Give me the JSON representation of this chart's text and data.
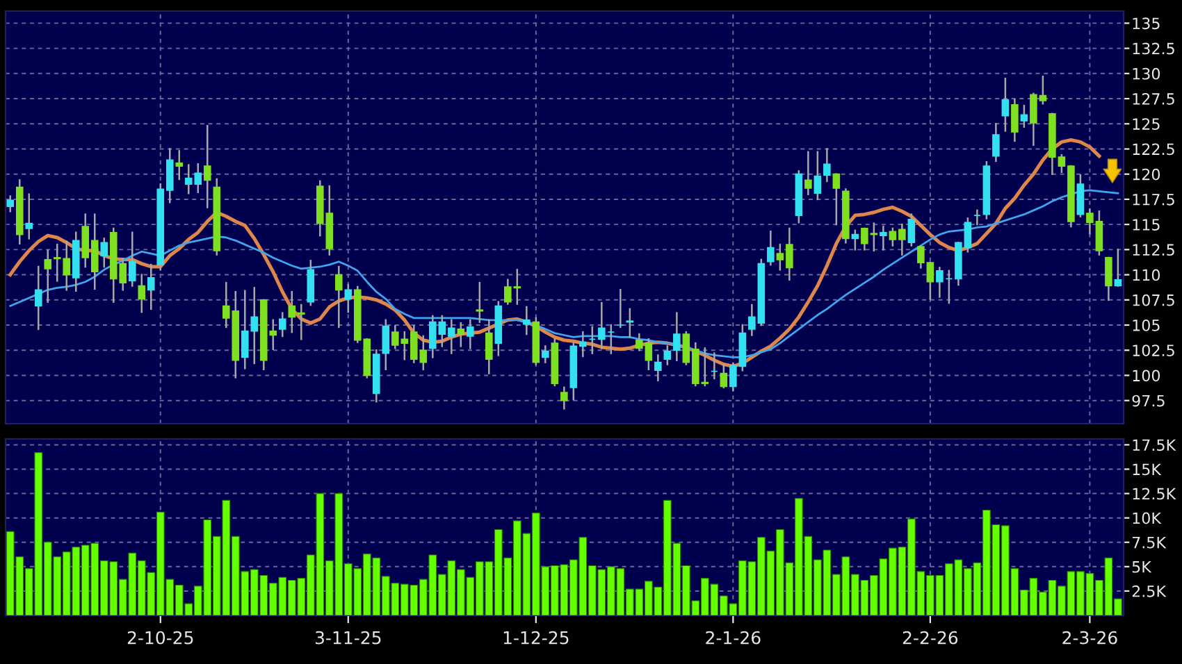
{
  "chart_data": [
    {
      "type": "candlestick",
      "categories": [
        null,
        null,
        null,
        null,
        null,
        null,
        null,
        null,
        null,
        null,
        null,
        null,
        null,
        null,
        null,
        null,
        null,
        null,
        null,
        null,
        null,
        null,
        null,
        null,
        null,
        null,
        null,
        null,
        null,
        null,
        null,
        null,
        null,
        null,
        null,
        null,
        null,
        null,
        null,
        null,
        null,
        null,
        null,
        null,
        null,
        null,
        null,
        null,
        null,
        null,
        null,
        null,
        null,
        null,
        null,
        null,
        null,
        null,
        null,
        null,
        null,
        null,
        null,
        null,
        null,
        null,
        null,
        null,
        null,
        null,
        null,
        null,
        null,
        null,
        null,
        null,
        null,
        null,
        null,
        null,
        null,
        null,
        null,
        null,
        null,
        null,
        null,
        null,
        null,
        null,
        null,
        null,
        null,
        null,
        null,
        null,
        null,
        null,
        null,
        null,
        null,
        null,
        null,
        null,
        null,
        null,
        null,
        null,
        null,
        null,
        null,
        null,
        null,
        null,
        null,
        null,
        null,
        null,
        null
      ],
      "ohlc": [
        [
          116.8,
          117.8,
          116.3,
          117.4
        ],
        [
          118.7,
          119.4,
          113.1,
          114.0
        ],
        [
          114.6,
          118.0,
          113.6,
          115.1
        ],
        [
          106.9,
          110.8,
          104.6,
          108.5
        ],
        [
          111.5,
          112.4,
          107.3,
          110.6
        ],
        [
          111.7,
          113.0,
          109.4,
          111.6
        ],
        [
          111.6,
          113.3,
          108.5,
          110.0
        ],
        [
          109.7,
          114.2,
          108.4,
          113.4
        ],
        [
          114.8,
          116.0,
          110.8,
          111.7
        ],
        [
          113.4,
          116.0,
          108.6,
          110.3
        ],
        [
          111.9,
          113.6,
          110.8,
          113.2
        ],
        [
          114.2,
          114.6,
          107.3,
          109.6
        ],
        [
          111.1,
          111.6,
          108.5,
          109.2
        ],
        [
          109.4,
          114.2,
          108.9,
          111.3
        ],
        [
          108.9,
          110.0,
          106.3,
          107.6
        ],
        [
          108.5,
          111.0,
          106.6,
          109.7
        ],
        [
          111.0,
          119.0,
          110.5,
          118.5
        ],
        [
          118.4,
          122.5,
          117.2,
          121.4
        ],
        [
          121.1,
          122.3,
          119.5,
          120.8
        ],
        [
          119.0,
          120.9,
          118.1,
          119.6
        ],
        [
          119.0,
          121.0,
          118.2,
          120.1
        ],
        [
          120.8,
          124.8,
          116.7,
          119.4
        ],
        [
          118.7,
          119.5,
          112.0,
          112.4
        ],
        [
          106.9,
          109.2,
          104.8,
          105.7
        ],
        [
          106.4,
          108.3,
          99.8,
          101.5
        ],
        [
          101.8,
          108.4,
          100.7,
          104.4
        ],
        [
          104.4,
          108.7,
          101.2,
          105.8
        ],
        [
          107.5,
          107.5,
          100.6,
          101.5
        ],
        [
          104.4,
          105.5,
          102.6,
          104.0
        ],
        [
          104.6,
          106.2,
          103.9,
          105.6
        ],
        [
          106.9,
          108.3,
          104.3,
          105.8
        ],
        [
          106.2,
          107.0,
          103.6,
          106.1
        ],
        [
          107.3,
          111.4,
          107.0,
          110.5
        ],
        [
          118.8,
          119.3,
          113.9,
          115.1
        ],
        [
          116.1,
          118.8,
          112.0,
          112.6
        ],
        [
          110.0,
          110.8,
          104.8,
          108.5
        ],
        [
          107.6,
          109.0,
          106.3,
          108.5
        ],
        [
          108.5,
          108.8,
          103.3,
          103.5
        ],
        [
          103.6,
          103.6,
          99.8,
          100.0
        ],
        [
          98.2,
          102.5,
          97.4,
          102.1
        ],
        [
          102.2,
          105.5,
          100.6,
          104.9
        ],
        [
          104.3,
          104.9,
          102.7,
          103.0
        ],
        [
          103.6,
          104.3,
          101.6,
          103.2
        ],
        [
          104.3,
          104.9,
          101.3,
          101.6
        ],
        [
          102.5,
          103.9,
          100.6,
          101.3
        ],
        [
          102.7,
          105.9,
          101.8,
          105.3
        ],
        [
          104.1,
          105.9,
          102.9,
          105.3
        ],
        [
          103.9,
          105.5,
          102.2,
          104.7
        ],
        [
          104.6,
          105.2,
          102.9,
          104.1
        ],
        [
          103.9,
          105.5,
          102.7,
          104.8
        ],
        [
          106.5,
          109.2,
          105.3,
          106.4
        ],
        [
          104.2,
          105.5,
          100.2,
          101.6
        ],
        [
          103.2,
          107.3,
          102.0,
          106.9
        ],
        [
          108.8,
          109.5,
          107.1,
          107.3
        ],
        [
          108.8,
          110.5,
          107.1,
          108.7
        ],
        [
          105.1,
          106.8,
          104.1,
          105.5
        ],
        [
          105.3,
          105.7,
          101.1,
          101.3
        ],
        [
          101.8,
          102.9,
          101.3,
          102.4
        ],
        [
          103.2,
          103.6,
          99.0,
          99.2
        ],
        [
          98.3,
          98.8,
          96.7,
          97.5
        ],
        [
          98.8,
          103.2,
          97.6,
          102.9
        ],
        [
          102.9,
          104.3,
          101.9,
          103.3
        ],
        [
          103.6,
          104.8,
          102.2,
          103.6
        ],
        [
          103.6,
          107.2,
          102.7,
          104.7
        ],
        [
          104.3,
          105.0,
          102.2,
          104.3
        ],
        [
          105.0,
          108.5,
          104.8,
          105.0
        ],
        [
          105.3,
          106.6,
          103.8,
          105.4
        ],
        [
          103.5,
          104.1,
          102.5,
          102.7
        ],
        [
          103.2,
          103.6,
          100.6,
          101.5
        ],
        [
          100.5,
          102.0,
          99.5,
          101.3
        ],
        [
          101.6,
          102.9,
          101.1,
          102.4
        ],
        [
          102.5,
          106.2,
          101.5,
          104.1
        ],
        [
          104.1,
          104.3,
          101.1,
          101.3
        ],
        [
          102.6,
          103.2,
          99.0,
          99.2
        ],
        [
          99.3,
          102.7,
          99.0,
          99.2
        ],
        [
          100.4,
          102.2,
          99.7,
          100.4
        ],
        [
          100.2,
          101.1,
          98.8,
          98.9
        ],
        [
          98.9,
          101.2,
          98.5,
          101.0
        ],
        [
          100.9,
          105.0,
          100.5,
          104.2
        ],
        [
          104.6,
          107.0,
          104.0,
          105.8
        ],
        [
          105.2,
          111.5,
          105.0,
          111.1
        ],
        [
          111.3,
          114.3,
          111.0,
          112.7
        ],
        [
          112.1,
          113.0,
          110.5,
          111.5
        ],
        [
          113.0,
          114.6,
          109.5,
          110.7
        ],
        [
          115.9,
          120.3,
          115.2,
          120.0
        ],
        [
          119.4,
          122.2,
          118.0,
          118.6
        ],
        [
          118.1,
          122.2,
          117.5,
          119.8
        ],
        [
          119.9,
          122.5,
          119.3,
          121.0
        ],
        [
          120.0,
          120.0,
          115.0,
          118.6
        ],
        [
          118.3,
          118.5,
          113.2,
          113.6
        ],
        [
          113.6,
          114.4,
          112.5,
          114.0
        ],
        [
          114.6,
          114.6,
          112.5,
          113.1
        ],
        [
          114.1,
          115.1,
          112.4,
          114.0
        ],
        [
          113.9,
          114.8,
          112.5,
          114.2
        ],
        [
          114.3,
          114.6,
          112.9,
          113.5
        ],
        [
          114.5,
          115.0,
          112.0,
          113.5
        ],
        [
          113.2,
          116.0,
          112.9,
          115.5
        ],
        [
          112.8,
          112.8,
          110.7,
          111.2
        ],
        [
          111.2,
          111.2,
          107.6,
          109.3
        ],
        [
          109.3,
          110.7,
          107.8,
          110.4
        ],
        [
          109.6,
          110.4,
          107.2,
          109.6
        ],
        [
          109.6,
          113.2,
          109.0,
          113.2
        ],
        [
          112.7,
          115.6,
          112.3,
          115.2
        ],
        [
          115.9,
          116.4,
          115.0,
          115.9
        ],
        [
          116.0,
          121.2,
          115.6,
          120.8
        ],
        [
          121.8,
          125.0,
          121.3,
          123.9
        ],
        [
          125.8,
          129.5,
          124.3,
          127.4
        ],
        [
          126.9,
          127.4,
          123.3,
          124.2
        ],
        [
          125.3,
          126.8,
          124.7,
          125.9
        ],
        [
          127.9,
          128.0,
          122.9,
          125.1
        ],
        [
          127.8,
          129.7,
          127.0,
          127.3
        ],
        [
          126.0,
          126.0,
          120.0,
          121.7
        ],
        [
          121.7,
          121.9,
          120.2,
          120.8
        ],
        [
          120.8,
          120.8,
          114.8,
          115.3
        ],
        [
          116.0,
          119.9,
          115.8,
          119.0
        ],
        [
          116.1,
          116.5,
          114.1,
          115.2
        ],
        [
          115.3,
          116.3,
          112.0,
          112.4
        ],
        [
          111.7,
          111.7,
          107.5,
          108.9
        ],
        [
          108.9,
          112.5,
          108.9,
          109.5
        ]
      ],
      "colors": [
        "#33e0f0",
        "#7ee020",
        "#33e0f0",
        "#33e0f0",
        "#7ee020",
        "#7ee020",
        "#7ee020",
        "#33e0f0",
        "#7ee020",
        "#7ee020",
        "#33e0f0",
        "#7ee020",
        "#7ee020",
        "#33e0f0",
        "#7ee020",
        "#33e0f0",
        "#33e0f0",
        "#33e0f0",
        "#7ee020",
        "#33e0f0",
        "#33e0f0",
        "#7ee020",
        "#7ee020",
        "#7ee020",
        "#7ee020",
        "#33e0f0",
        "#33e0f0",
        "#7ee020",
        "#7ee020",
        "#33e0f0",
        "#7ee020",
        "#7ee020",
        "#33e0f0",
        "#7ee020",
        "#7ee020",
        "#7ee020",
        "#33e0f0",
        "#7ee020",
        "#7ee020",
        "#33e0f0",
        "#33e0f0",
        "#7ee020",
        "#7ee020",
        "#7ee020",
        "#7ee020",
        "#33e0f0",
        "#33e0f0",
        "#33e0f0",
        "#7ee020",
        "#33e0f0",
        "#7ee020",
        "#7ee020",
        "#33e0f0",
        "#7ee020",
        "#7ee020",
        "#33e0f0",
        "#7ee020",
        "#33e0f0",
        "#7ee020",
        "#7ee020",
        "#33e0f0",
        "#33e0f0",
        "#33e0f0",
        "#33e0f0",
        "#33e0f0",
        "#33e0f0",
        "#33e0f0",
        "#7ee020",
        "#7ee020",
        "#33e0f0",
        "#33e0f0",
        "#33e0f0",
        "#7ee020",
        "#7ee020",
        "#7ee020",
        "#33e0f0",
        "#7ee020",
        "#33e0f0",
        "#33e0f0",
        "#33e0f0",
        "#33e0f0",
        "#33e0f0",
        "#7ee020",
        "#7ee020",
        "#33e0f0",
        "#7ee020",
        "#33e0f0",
        "#33e0f0",
        "#7ee020",
        "#7ee020",
        "#33e0f0",
        "#7ee020",
        "#7ee020",
        "#33e0f0",
        "#7ee020",
        "#7ee020",
        "#33e0f0",
        "#7ee020",
        "#7ee020",
        "#33e0f0",
        "#33e0f0",
        "#33e0f0",
        "#33e0f0",
        "#33e0f0",
        "#33e0f0",
        "#33e0f0",
        "#33e0f0",
        "#7ee020",
        "#33e0f0",
        "#7ee020",
        "#7ee020",
        "#7ee020",
        "#7ee020",
        "#7ee020",
        "#33e0f0",
        "#7ee020",
        "#7ee020",
        "#7ee020",
        "#33e0f0"
      ],
      "series": [
        {
          "type": "line",
          "color": "#e0864a",
          "values": [
            110.0,
            111.3,
            112.4,
            113.3,
            113.9,
            113.7,
            113.2,
            112.6,
            112.4,
            112.4,
            111.9,
            111.6,
            111.5,
            111.5,
            111.1,
            110.8,
            110.8,
            111.9,
            112.6,
            113.5,
            114.2,
            115.3,
            116.2,
            115.8,
            115.3,
            114.9,
            113.6,
            112.0,
            110.3,
            108.3,
            106.6,
            105.6,
            105.2,
            105.6,
            106.8,
            107.4,
            107.7,
            107.8,
            107.7,
            107.5,
            107.1,
            106.5,
            105.5,
            104.2,
            103.5,
            103.3,
            103.4,
            103.8,
            104.1,
            104.2,
            104.3,
            104.7,
            105.1,
            105.5,
            105.6,
            105.3,
            104.9,
            104.3,
            103.8,
            103.5,
            103.4,
            103.2,
            103.1,
            102.8,
            102.7,
            102.6,
            102.7,
            103.0,
            103.2,
            103.3,
            103.2,
            103.0,
            102.8,
            102.4,
            102.0,
            101.5,
            101.1,
            100.9,
            101.2,
            101.8,
            102.4,
            102.9,
            103.7,
            104.6,
            105.8,
            107.3,
            108.9,
            110.9,
            113.1,
            114.8,
            115.9,
            116.0,
            116.2,
            116.5,
            116.7,
            116.3,
            115.8,
            114.9,
            114.0,
            113.2,
            112.7,
            112.4,
            112.7,
            113.1,
            114.1,
            115.1,
            116.6,
            117.6,
            118.9,
            120.0,
            121.4,
            122.5,
            123.2,
            123.4,
            123.2,
            122.7,
            121.8,
            null,
            null
          ]
        },
        {
          "type": "line",
          "color": "#3fa6ee",
          "values": [
            106.9,
            107.3,
            107.7,
            108.1,
            108.5,
            108.7,
            108.8,
            109.0,
            109.3,
            109.8,
            110.5,
            111.0,
            111.4,
            111.9,
            112.3,
            112.1,
            111.9,
            112.4,
            112.9,
            113.2,
            113.4,
            113.6,
            113.8,
            113.7,
            113.4,
            113.0,
            112.6,
            112.2,
            111.7,
            111.3,
            110.9,
            110.6,
            110.7,
            110.8,
            111.0,
            111.3,
            110.9,
            110.4,
            109.3,
            108.3,
            107.6,
            106.6,
            106.1,
            105.7,
            105.7,
            105.7,
            105.7,
            105.7,
            105.7,
            105.7,
            105.6,
            105.5,
            105.5,
            105.5,
            105.5,
            105.3,
            105.0,
            104.6,
            104.2,
            104.0,
            103.8,
            103.9,
            103.9,
            103.9,
            103.9,
            103.8,
            103.8,
            103.6,
            103.5,
            103.3,
            103.2,
            103.0,
            102.8,
            102.5,
            102.2,
            102.0,
            101.9,
            101.8,
            101.8,
            102.0,
            102.3,
            102.6,
            103.2,
            103.9,
            104.6,
            105.3,
            106.0,
            106.6,
            107.3,
            108.0,
            108.6,
            109.2,
            109.8,
            110.5,
            111.1,
            111.7,
            112.3,
            112.9,
            113.5,
            114.0,
            114.3,
            114.4,
            114.5,
            114.7,
            114.8,
            115.1,
            115.4,
            115.7,
            116.0,
            116.4,
            116.8,
            117.3,
            117.7,
            118.0,
            118.3,
            118.4,
            118.3,
            118.2,
            118.1
          ]
        }
      ],
      "ylim": [
        95.2,
        136.2
      ],
      "yticks": [
        97.5,
        100,
        102.5,
        105,
        107.5,
        110,
        112.5,
        115,
        117.5,
        120,
        122.5,
        125,
        127.5,
        130,
        132.5,
        135
      ],
      "grid": true,
      "tick_labels": "y"
    },
    {
      "type": "bar",
      "categories": [
        null,
        null,
        null,
        null,
        null,
        null,
        null,
        null,
        null,
        null,
        null,
        null,
        null,
        null,
        null,
        null,
        "2-10-25",
        null,
        null,
        null,
        null,
        null,
        null,
        null,
        null,
        null,
        null,
        null,
        null,
        null,
        null,
        null,
        null,
        null,
        null,
        null,
        "3-11-25",
        null,
        null,
        null,
        null,
        null,
        null,
        null,
        null,
        null,
        null,
        null,
        null,
        null,
        null,
        null,
        null,
        null,
        null,
        null,
        "1-12-25",
        null,
        null,
        null,
        null,
        null,
        null,
        null,
        null,
        null,
        null,
        null,
        null,
        null,
        null,
        null,
        null,
        null,
        null,
        null,
        null,
        "2-1-26",
        null,
        null,
        null,
        null,
        null,
        null,
        null,
        null,
        null,
        null,
        null,
        null,
        null,
        null,
        null,
        null,
        null,
        null,
        null,
        null,
        "2-2-26",
        null,
        null,
        null,
        null,
        null,
        null,
        null,
        null,
        null,
        null,
        null,
        null,
        null,
        null,
        null,
        null,
        "2-3-26",
        null,
        null,
        null
      ],
      "values": [
        8.6,
        6.0,
        4.8,
        16.7,
        7.5,
        6.0,
        6.5,
        7.0,
        7.2,
        7.4,
        5.6,
        5.5,
        3.7,
        6.4,
        5.6,
        4.4,
        10.6,
        3.7,
        3.1,
        1.2,
        3.0,
        9.8,
        8.1,
        11.8,
        8.1,
        4.5,
        4.7,
        4.1,
        3.3,
        3.9,
        3.6,
        3.8,
        6.2,
        12.5,
        5.6,
        12.5,
        5.3,
        4.8,
        6.3,
        5.9,
        4.0,
        3.3,
        3.2,
        3.1,
        3.7,
        6.2,
        4.2,
        5.6,
        4.7,
        3.9,
        5.5,
        5.5,
        8.8,
        5.9,
        9.7,
        8.4,
        10.5,
        5.0,
        5.1,
        5.2,
        5.7,
        8.0,
        5.1,
        4.7,
        5.0,
        4.8,
        2.7,
        2.7,
        3.5,
        2.9,
        11.8,
        7.4,
        5.1,
        1.5,
        3.8,
        3.2,
        2.0,
        1.2,
        5.6,
        5.5,
        8.0,
        6.6,
        8.8,
        5.4,
        12.0,
        8.1,
        5.7,
        6.7,
        4.2,
        6.0,
        4.2,
        3.6,
        4.1,
        5.8,
        6.9,
        7.0,
        9.9,
        4.5,
        4.1,
        4.1,
        5.3,
        5.7,
        4.8,
        5.4,
        10.8,
        9.3,
        9.2,
        4.8,
        2.6,
        3.8,
        2.4,
        3.6,
        3.0,
        4.5,
        4.5,
        4.3,
        3.6,
        5.9,
        1.7
      ],
      "color": "#66ff00",
      "ylim": [
        0,
        18.1
      ],
      "yticks": [
        {
          "value": 2.5,
          "label": "2.5K"
        },
        {
          "value": 5,
          "label": "5K"
        },
        {
          "value": 7.5,
          "label": "7.5K"
        },
        {
          "value": 10,
          "label": "10K"
        },
        {
          "value": 12.5,
          "label": "12.5K"
        },
        {
          "value": 15,
          "label": "15K"
        },
        {
          "value": 17.5,
          "label": "17.5K"
        }
      ],
      "grid": true
    }
  ]
}
